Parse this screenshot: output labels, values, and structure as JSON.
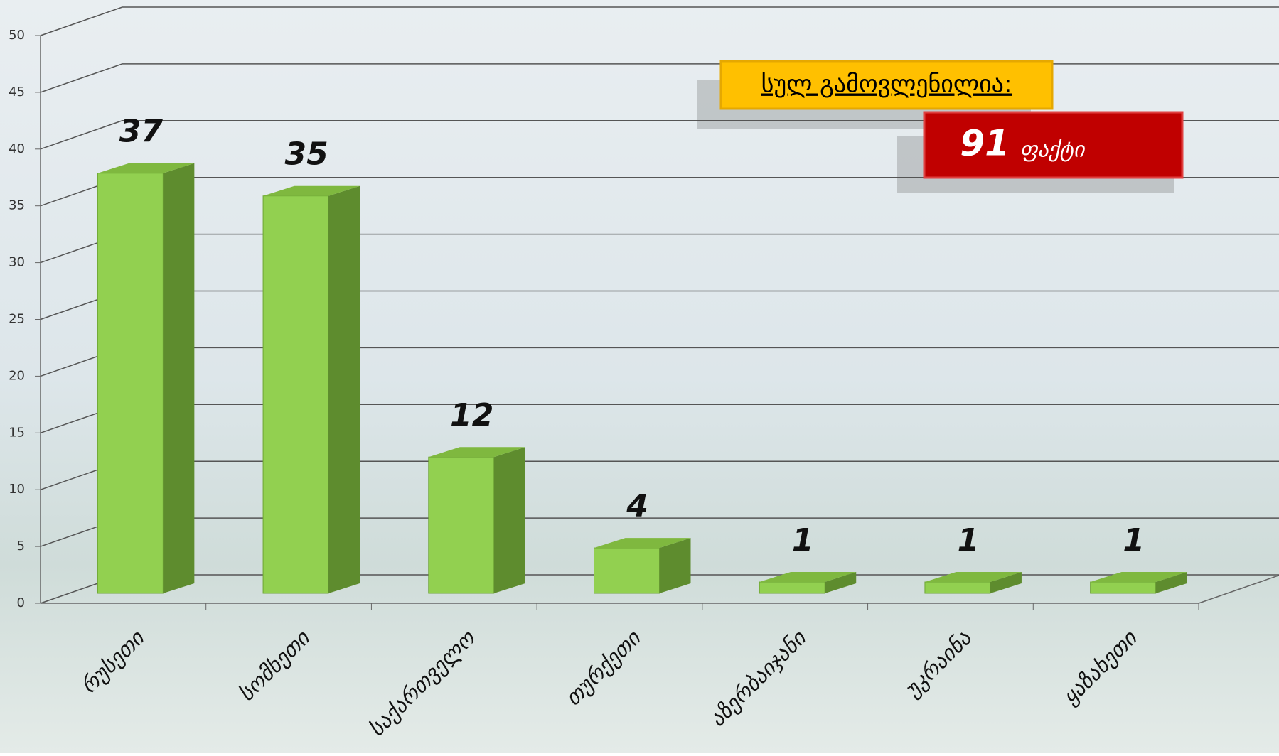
{
  "chart_data": {
    "type": "bar",
    "categories": [
      "რუსეთი",
      "სომხეთი",
      "საქართველო",
      "თურქეთი",
      "აზერბაიჯანი",
      "უკრაინა",
      "ყაზახეთი"
    ],
    "values": [
      37,
      35,
      12,
      4,
      1,
      1,
      1
    ],
    "color": "#92d050",
    "ylim": [
      0,
      50
    ],
    "yticks": [
      0,
      5,
      10,
      15,
      20,
      25,
      30,
      35,
      40,
      45,
      50
    ],
    "grid": true,
    "annotation": {
      "label": "სულ გამოვლენილია:",
      "value": 91,
      "unit": "ფაქტი"
    }
  }
}
